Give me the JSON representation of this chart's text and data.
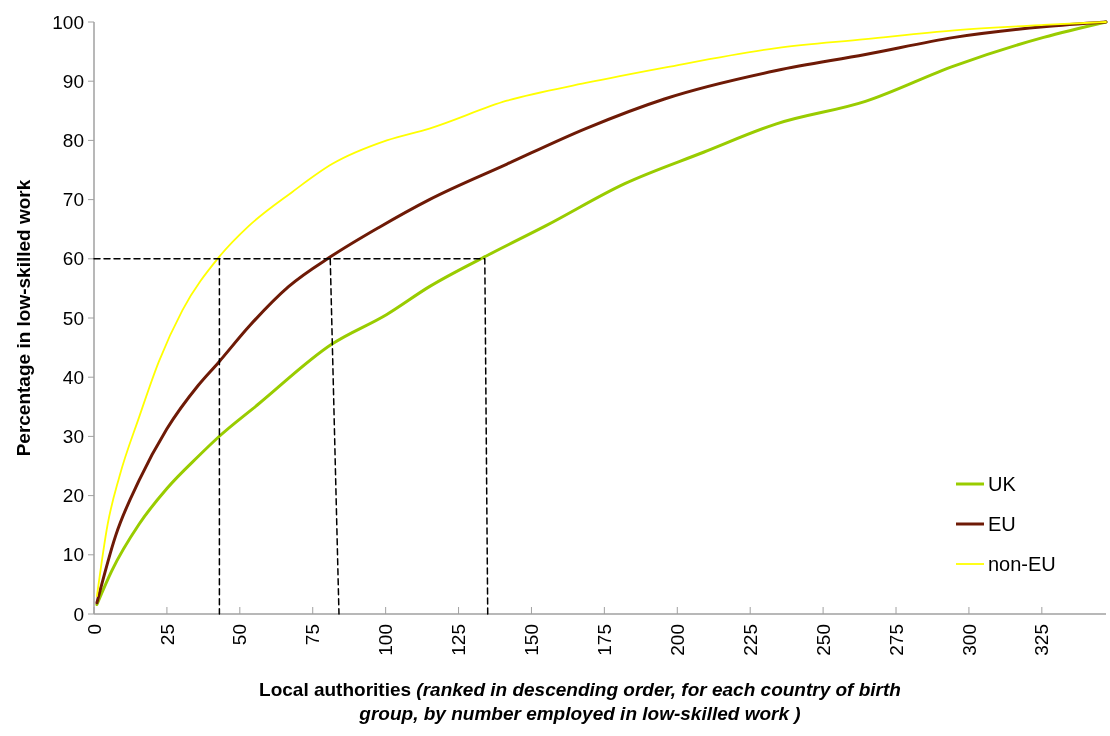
{
  "chart_data": {
    "type": "line",
    "xlabel": "Local authorities (ranked in descending order, for each country of birth group, by number employed in low-skilled work )",
    "ylabel": "Percentage in low-skilled work",
    "xlim": [
      0,
      347
    ],
    "xticks": [
      0,
      25,
      50,
      75,
      100,
      125,
      150,
      175,
      200,
      225,
      250,
      275,
      300,
      325
    ],
    "ylim": [
      0,
      100
    ],
    "yticks": [
      0,
      10,
      20,
      30,
      40,
      50,
      60,
      70,
      80,
      90,
      100
    ],
    "legend": "bottom right",
    "grid": false,
    "series": [
      {
        "name": "UK",
        "color": "#99cc00",
        "x": [
          1,
          6,
          15.5,
          25,
          35.7,
          42.7,
          56,
          81.6,
          100.4,
          115,
          135,
          155,
          182,
          209,
          234,
          264.5,
          295,
          325.6,
          347
        ],
        "values": [
          1.6,
          7.2,
          15.2,
          21.2,
          26.6,
          29.9,
          35.3,
          45.6,
          50.6,
          55.3,
          60.6,
          65.6,
          72.7,
          78,
          82.8,
          86.6,
          92.6,
          97.4,
          100
        ]
      },
      {
        "name": "EU",
        "color": "#6e1a06",
        "x": [
          1,
          7.4,
          15.5,
          24.9,
          35.7,
          42.7,
          53.2,
          66.7,
          81.6,
          97.7,
          115,
          141.6,
          168.6,
          195.6,
          234,
          264.5,
          295,
          325.6,
          347
        ],
        "values": [
          1.9,
          13.2,
          22.6,
          31.2,
          38.6,
          42.5,
          48.6,
          55.3,
          60.5,
          65.3,
          70,
          76,
          82,
          87,
          91.8,
          94.5,
          97.4,
          99.2,
          100
        ]
      },
      {
        "name": "non-EU",
        "color": "#ffff00",
        "x": [
          1,
          4.7,
          8.7,
          15.5,
          22.2,
          30.3,
          42.7,
          53.2,
          68,
          81.6,
          100.4,
          115,
          141.6,
          168.6,
          195.6,
          234,
          264.5,
          295,
          325.6,
          347
        ],
        "values": [
          3,
          15.2,
          23.2,
          33.3,
          42.6,
          51.3,
          60.2,
          65.6,
          71.3,
          76,
          80,
          82,
          86.7,
          89.7,
          92.3,
          95.6,
          97.1,
          98.6,
          99.5,
          100
        ]
      },
      {
        "color": "#000000",
        "line_style": "dashed",
        "x": [
          0,
          134,
          135
        ],
        "values": [
          60,
          60,
          0
        ]
      },
      {
        "color": "#000000",
        "line_style": "dashed",
        "x": [
          43,
          43
        ],
        "values": [
          60,
          0
        ]
      },
      {
        "color": "#000000",
        "line_style": "dashed",
        "x": [
          81,
          84
        ],
        "values": [
          60,
          0
        ]
      }
    ]
  }
}
